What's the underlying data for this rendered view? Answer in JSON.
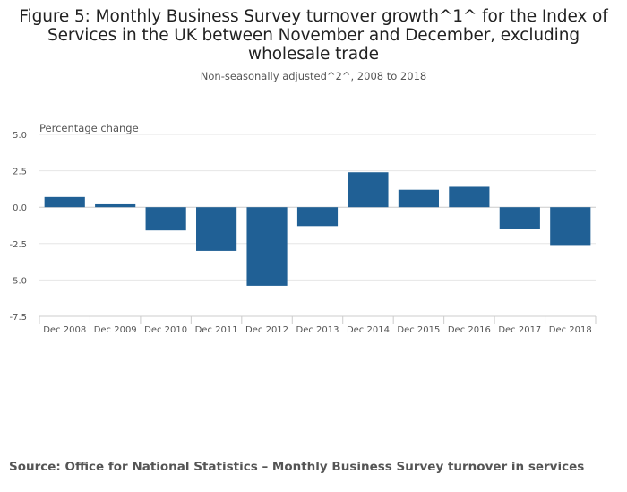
{
  "chart_data": {
    "type": "bar",
    "title": "Figure 5: Monthly Business Survey turnover growth^1^ for the Index of Services in the UK between November and December, excluding wholesale trade",
    "subtitle": "Non-seasonally adjusted^2^, 2008 to 2018",
    "ylabel": "Percentage change",
    "xlabel": "",
    "categories": [
      "Dec 2008",
      "Dec 2009",
      "Dec 2010",
      "Dec 2011",
      "Dec 2012",
      "Dec 2013",
      "Dec 2014",
      "Dec 2015",
      "Dec 2016",
      "Dec 2017",
      "Dec 2018"
    ],
    "values": [
      0.7,
      0.2,
      -1.6,
      -3.0,
      -5.4,
      -1.3,
      2.4,
      1.2,
      1.4,
      -1.5,
      -2.6
    ],
    "ylim": [
      -7.5,
      5.0
    ],
    "yticks": [
      "5.0",
      "2.5",
      "0.0",
      "-2.5",
      "-5.0",
      "-7.5"
    ],
    "ytick_values": [
      5.0,
      2.5,
      0.0,
      -2.5,
      -5.0,
      -7.5
    ],
    "grid": true,
    "bar_color": "#206095"
  },
  "source": "Source: Office for National Statistics – Monthly Business Survey turnover in services"
}
